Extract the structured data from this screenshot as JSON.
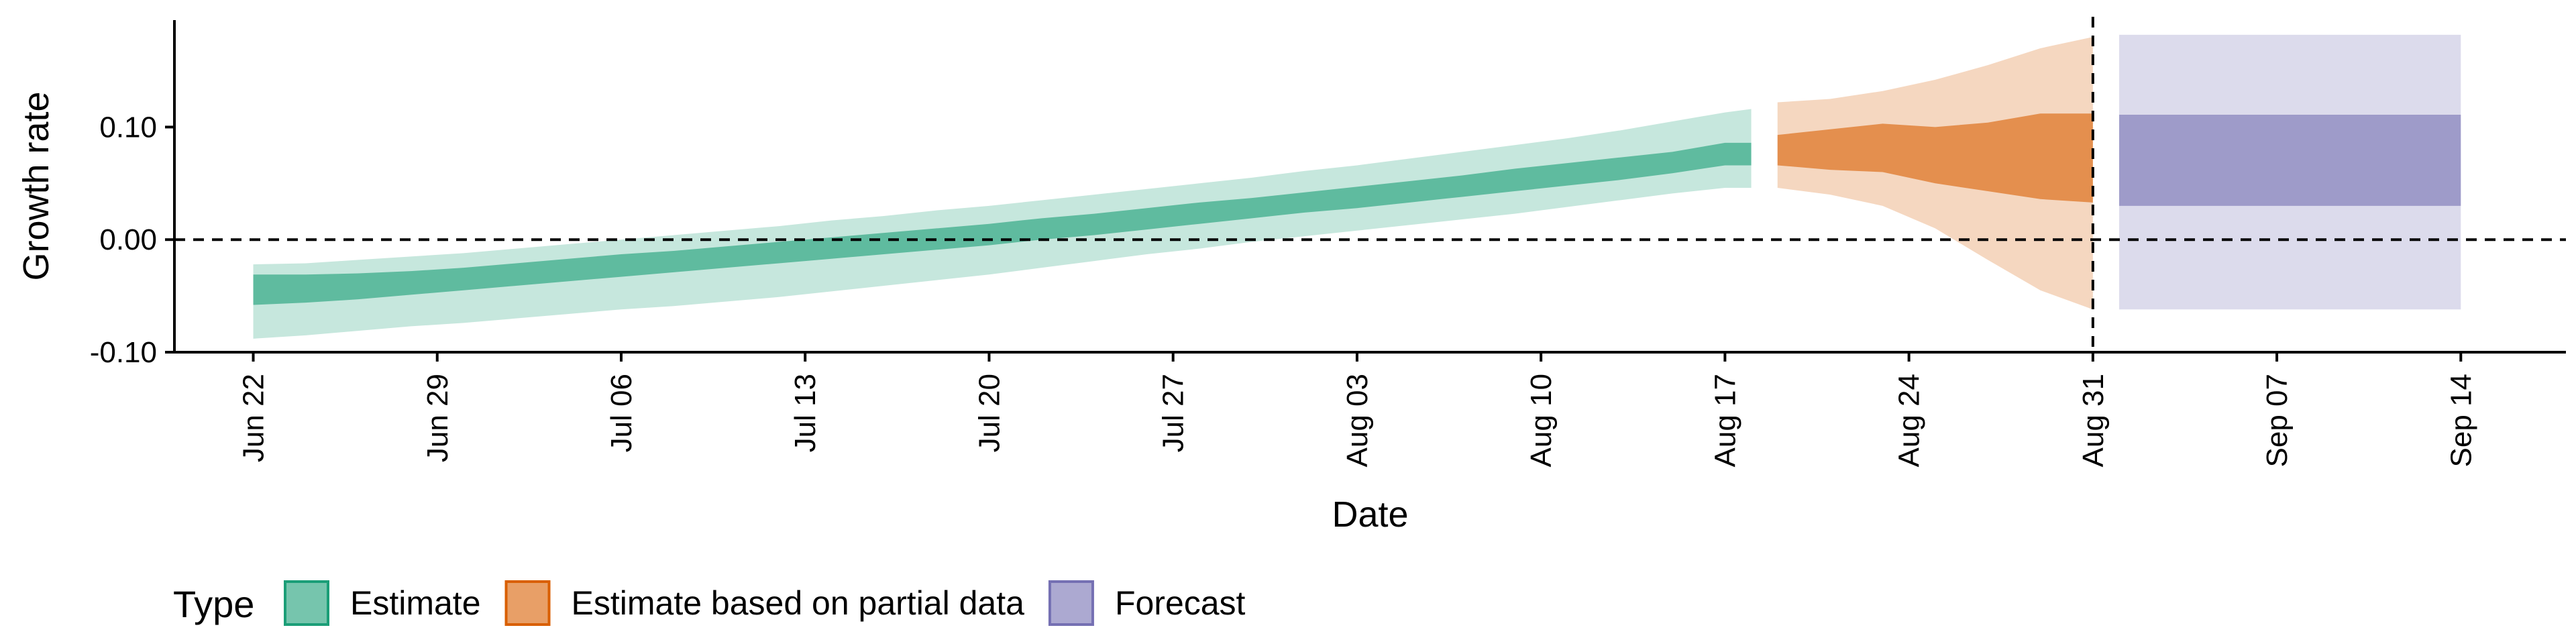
{
  "chart_data": {
    "type": "area",
    "xlabel": "Date",
    "ylabel": "Growth rate",
    "x_ticks": [
      "Jun 22",
      "Jun 29",
      "Jul 06",
      "Jul 13",
      "Jul 20",
      "Jul 27",
      "Aug 03",
      "Aug 10",
      "Aug 17",
      "Aug 24",
      "Aug 31",
      "Sep 07",
      "Sep 14"
    ],
    "y_ticks": [
      "-0.10",
      "0.00",
      "0.10"
    ],
    "ylim": [
      -0.1,
      0.195
    ],
    "xlim": [
      "2020-06-19",
      "2020-09-18"
    ],
    "grid": false,
    "reference_lines": [
      {
        "orientation": "horizontal",
        "y": 0.0,
        "style": "dashed"
      },
      {
        "orientation": "vertical",
        "x": "2020-08-31",
        "style": "dashed"
      }
    ],
    "legend": {
      "title": "Type",
      "placement": "bottom-left",
      "entries": [
        {
          "name": "Estimate",
          "color": "#1b9e77"
        },
        {
          "name": "Estimate based on partial data",
          "color": "#d95f02"
        },
        {
          "name": "Forecast",
          "color": "#7570b3"
        }
      ]
    },
    "series": [
      {
        "name": "Estimate",
        "color": "#1b9e77",
        "x": [
          "2020-06-22",
          "2020-06-24",
          "2020-06-26",
          "2020-06-28",
          "2020-06-30",
          "2020-07-02",
          "2020-07-04",
          "2020-07-06",
          "2020-07-08",
          "2020-07-10",
          "2020-07-12",
          "2020-07-14",
          "2020-07-16",
          "2020-07-18",
          "2020-07-20",
          "2020-07-22",
          "2020-07-24",
          "2020-07-26",
          "2020-07-28",
          "2020-07-30",
          "2020-08-01",
          "2020-08-03",
          "2020-08-05",
          "2020-08-07",
          "2020-08-09",
          "2020-08-11",
          "2020-08-13",
          "2020-08-15",
          "2020-08-17",
          "2020-08-18"
        ],
        "lower_90": [
          -0.088,
          -0.085,
          -0.081,
          -0.077,
          -0.074,
          -0.07,
          -0.066,
          -0.062,
          -0.059,
          -0.055,
          -0.051,
          -0.046,
          -0.041,
          -0.036,
          -0.031,
          -0.025,
          -0.019,
          -0.013,
          -0.008,
          -0.002,
          0.003,
          0.008,
          0.013,
          0.018,
          0.023,
          0.029,
          0.035,
          0.041,
          0.046,
          0.046
        ],
        "lower_50": [
          -0.058,
          -0.056,
          -0.053,
          -0.049,
          -0.045,
          -0.041,
          -0.037,
          -0.033,
          -0.029,
          -0.025,
          -0.021,
          -0.017,
          -0.013,
          -0.009,
          -0.005,
          0.0,
          0.004,
          0.009,
          0.014,
          0.019,
          0.024,
          0.028,
          0.033,
          0.038,
          0.043,
          0.048,
          0.053,
          0.059,
          0.066,
          0.066
        ],
        "upper_50": [
          -0.031,
          -0.031,
          -0.03,
          -0.028,
          -0.025,
          -0.021,
          -0.017,
          -0.013,
          -0.01,
          -0.006,
          -0.002,
          0.002,
          0.006,
          0.01,
          0.014,
          0.019,
          0.023,
          0.028,
          0.033,
          0.037,
          0.042,
          0.047,
          0.052,
          0.057,
          0.063,
          0.068,
          0.073,
          0.078,
          0.086,
          0.086
        ],
        "upper_90": [
          -0.022,
          -0.021,
          -0.018,
          -0.015,
          -0.012,
          -0.008,
          -0.004,
          0.0,
          0.004,
          0.008,
          0.012,
          0.017,
          0.021,
          0.026,
          0.03,
          0.035,
          0.04,
          0.045,
          0.05,
          0.055,
          0.061,
          0.066,
          0.072,
          0.078,
          0.084,
          0.09,
          0.097,
          0.105,
          0.113,
          0.116
        ]
      },
      {
        "name": "Estimate based on partial data",
        "color": "#d95f02",
        "x": [
          "2020-08-19",
          "2020-08-21",
          "2020-08-23",
          "2020-08-25",
          "2020-08-27",
          "2020-08-29",
          "2020-08-31"
        ],
        "lower_90": [
          0.046,
          0.04,
          0.03,
          0.01,
          -0.018,
          -0.045,
          -0.062
        ],
        "lower_50": [
          0.066,
          0.062,
          0.06,
          0.05,
          0.043,
          0.036,
          0.033
        ],
        "upper_50": [
          0.093,
          0.098,
          0.103,
          0.1,
          0.104,
          0.112,
          0.112
        ],
        "upper_90": [
          0.122,
          0.125,
          0.132,
          0.142,
          0.155,
          0.17,
          0.18
        ]
      },
      {
        "name": "Forecast",
        "color": "#7570b3",
        "x": [
          "2020-09-01",
          "2020-09-14"
        ],
        "lower_90": [
          -0.062,
          -0.062
        ],
        "lower_50": [
          0.03,
          0.03
        ],
        "upper_50": [
          0.111,
          0.111
        ],
        "upper_90": [
          0.182,
          0.182
        ]
      }
    ]
  }
}
